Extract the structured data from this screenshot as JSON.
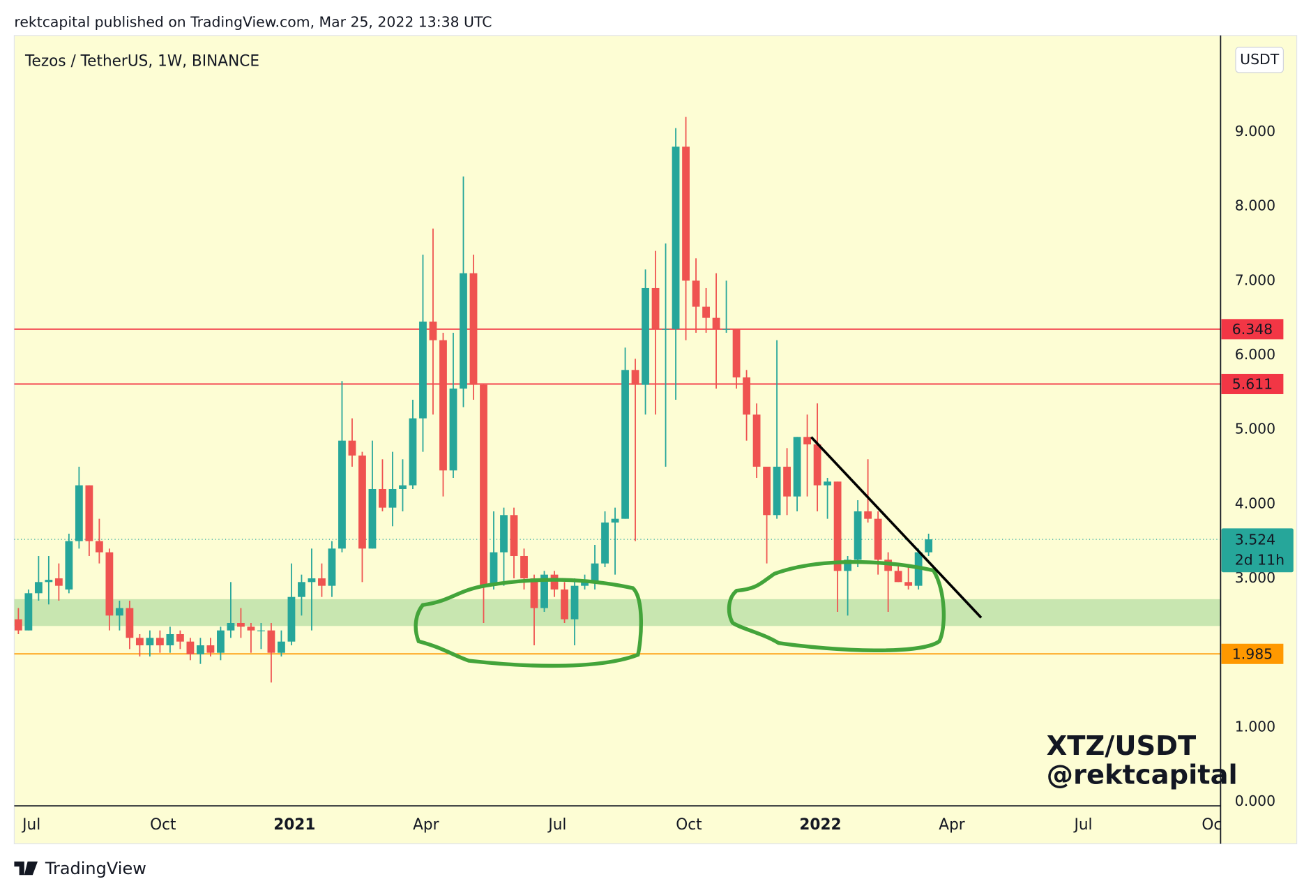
{
  "header": {
    "text": "rektcapital published on TradingView.com, Mar 25, 2022 13:38 UTC"
  },
  "footer": {
    "brand": "TradingView"
  },
  "chart_data": {
    "type": "candlestick",
    "title": "Tezos / TetherUS, 1W, BINANCE",
    "currency": "USDT",
    "watermark": [
      "XTZ/USDT",
      "@rektcapital"
    ],
    "x": [
      0,
      1,
      2,
      3,
      4,
      5,
      6,
      7,
      8,
      9,
      10,
      11,
      12,
      13,
      14,
      15,
      16,
      17,
      18,
      19,
      20,
      21,
      22,
      23,
      24,
      25,
      26,
      27,
      28,
      29,
      30,
      31,
      32,
      33,
      34,
      35,
      36,
      37,
      38,
      39,
      40,
      41,
      42,
      43,
      44,
      45,
      46,
      47,
      48,
      49,
      50,
      51,
      52,
      53,
      54,
      55,
      56,
      57,
      58,
      59,
      60,
      61,
      62,
      63,
      64,
      65,
      66,
      67,
      68,
      69,
      70,
      71,
      72,
      73,
      74,
      75,
      76,
      77,
      78,
      79,
      80,
      81,
      82,
      83,
      84,
      85,
      86,
      87,
      88,
      89,
      90
    ],
    "open": [
      2.45,
      2.3,
      2.8,
      2.95,
      3.0,
      2.85,
      3.5,
      4.25,
      3.5,
      3.35,
      2.5,
      2.6,
      2.2,
      2.1,
      2.2,
      2.1,
      2.25,
      2.15,
      1.98,
      2.1,
      2.0,
      2.3,
      2.4,
      2.35,
      2.3,
      2.3,
      2.0,
      2.15,
      2.75,
      2.95,
      3.0,
      2.9,
      3.4,
      4.85,
      4.65,
      3.4,
      4.2,
      3.95,
      4.2,
      4.25,
      5.15,
      6.45,
      6.2,
      4.45,
      5.55,
      7.1,
      5.6,
      2.9,
      3.35,
      3.85,
      3.3,
      3.0,
      2.6,
      3.05,
      2.85,
      2.45,
      2.9,
      2.95,
      3.2,
      3.75,
      3.8,
      5.8,
      5.6,
      6.9,
      6.35,
      6.35,
      8.8,
      7.0,
      6.65,
      6.5,
      6.35,
      6.35,
      5.7,
      5.2,
      4.5,
      3.85,
      4.5,
      4.1,
      4.9,
      4.8,
      4.25,
      4.3,
      3.1,
      3.25,
      3.9,
      3.8,
      3.25,
      3.1,
      2.95,
      2.9,
      3.35
    ],
    "high": [
      2.6,
      2.85,
      3.3,
      3.3,
      3.2,
      3.6,
      4.5,
      4.25,
      3.8,
      3.4,
      2.7,
      2.7,
      2.25,
      2.3,
      2.3,
      2.35,
      2.3,
      2.2,
      2.2,
      2.2,
      2.35,
      2.95,
      2.6,
      2.4,
      2.4,
      2.4,
      2.3,
      3.2,
      3.05,
      3.4,
      3.2,
      3.5,
      5.65,
      5.15,
      4.7,
      4.85,
      4.6,
      4.7,
      4.6,
      5.4,
      7.35,
      7.7,
      6.3,
      6.3,
      8.4,
      7.35,
      5.6,
      3.9,
      3.95,
      3.95,
      3.4,
      3.05,
      3.1,
      3.1,
      2.95,
      3.0,
      3.05,
      3.45,
      3.9,
      3.95,
      6.1,
      5.95,
      7.15,
      7.4,
      7.5,
      9.05,
      9.2,
      7.3,
      6.9,
      7.1,
      7.0,
      6.35,
      5.8,
      5.35,
      4.5,
      6.2,
      4.75,
      4.9,
      5.2,
      5.35,
      4.35,
      4.3,
      3.3,
      4.05,
      4.6,
      3.9,
      3.35,
      3.2,
      3.15,
      3.4,
      3.6
    ],
    "low": [
      2.25,
      2.3,
      2.7,
      2.65,
      2.7,
      2.8,
      3.4,
      3.3,
      3.2,
      2.3,
      2.3,
      2.05,
      1.95,
      1.95,
      2.0,
      2.0,
      2.05,
      1.9,
      1.85,
      1.95,
      1.9,
      2.2,
      2.2,
      2.0,
      2.05,
      1.6,
      1.95,
      2.1,
      2.5,
      2.3,
      2.75,
      2.75,
      3.35,
      4.5,
      2.95,
      3.4,
      3.9,
      3.7,
      3.9,
      4.2,
      4.7,
      5.2,
      4.1,
      4.35,
      5.3,
      5.4,
      2.4,
      2.85,
      2.9,
      3.0,
      2.85,
      2.1,
      2.55,
      2.75,
      2.4,
      2.1,
      2.85,
      2.85,
      3.15,
      3.05,
      3.8,
      3.5,
      5.2,
      5.2,
      4.5,
      5.4,
      6.2,
      6.3,
      6.3,
      5.55,
      6.3,
      5.55,
      4.85,
      4.35,
      3.2,
      3.8,
      3.85,
      3.9,
      4.1,
      3.9,
      3.8,
      2.55,
      2.5,
      3.15,
      3.75,
      3.05,
      2.55,
      2.95,
      2.85,
      2.85,
      3.3
    ],
    "close": [
      2.3,
      2.8,
      2.95,
      2.98,
      2.9,
      3.5,
      4.25,
      3.5,
      3.35,
      2.5,
      2.6,
      2.2,
      2.1,
      2.2,
      2.1,
      2.25,
      2.15,
      1.98,
      2.1,
      2.0,
      2.3,
      2.4,
      2.35,
      2.3,
      2.3,
      2.0,
      2.15,
      2.75,
      2.95,
      3.0,
      2.9,
      3.4,
      4.85,
      4.65,
      3.4,
      4.2,
      3.95,
      4.2,
      4.25,
      5.15,
      6.45,
      6.2,
      4.45,
      5.55,
      7.1,
      5.6,
      2.9,
      3.35,
      3.85,
      3.3,
      3.0,
      2.6,
      3.05,
      2.85,
      2.45,
      2.9,
      2.95,
      3.2,
      3.75,
      3.8,
      5.8,
      5.6,
      6.9,
      6.35,
      6.35,
      8.8,
      7.0,
      6.65,
      6.5,
      6.35,
      6.35,
      5.7,
      5.2,
      4.5,
      3.85,
      4.5,
      4.1,
      4.9,
      4.8,
      4.25,
      4.3,
      3.1,
      3.25,
      3.9,
      3.8,
      3.25,
      3.1,
      2.95,
      2.9,
      3.35,
      3.524
    ],
    "up_color": "#26a69a",
    "down_color": "#ef5350",
    "xlim": [
      -0.41,
      118.87
    ],
    "xticks": [
      {
        "value": 1.3,
        "label": "Jul"
      },
      {
        "value": 14.3,
        "label": "Oct"
      },
      {
        "value": 27.3,
        "label": "2021"
      },
      {
        "value": 40.3,
        "label": "Apr"
      },
      {
        "value": 53.3,
        "label": "Jul"
      },
      {
        "value": 66.3,
        "label": "Oct"
      },
      {
        "value": 79.3,
        "label": "2022"
      },
      {
        "value": 92.3,
        "label": "Apr"
      },
      {
        "value": 105.3,
        "label": "Jul"
      },
      {
        "value": 118.3,
        "label": "Oct"
      }
    ],
    "ylim": [
      -0.057,
      10.295
    ],
    "yticks": [
      {
        "value": 0,
        "label": "0.000"
      },
      {
        "value": 1,
        "label": "1.000"
      },
      {
        "value": 3,
        "label": "3.000"
      },
      {
        "value": 4,
        "label": "4.000"
      },
      {
        "value": 5,
        "label": "5.000"
      },
      {
        "value": 6,
        "label": "6.000"
      },
      {
        "value": 7,
        "label": "7.000"
      },
      {
        "value": 8,
        "label": "8.000"
      },
      {
        "value": 9,
        "label": "9.000"
      }
    ],
    "price_lines": [
      {
        "value": 6.348,
        "color": "#f23645"
      },
      {
        "value": 5.611,
        "color": "#f23645"
      },
      {
        "value": 1.985,
        "color": "#ff9800"
      }
    ],
    "zone": {
      "range": [
        2.36,
        2.72
      ],
      "color": "#c8e6b0"
    },
    "last_price": {
      "value": 3.524,
      "countdown": "2d 11h",
      "color": "#26a69a"
    }
  }
}
